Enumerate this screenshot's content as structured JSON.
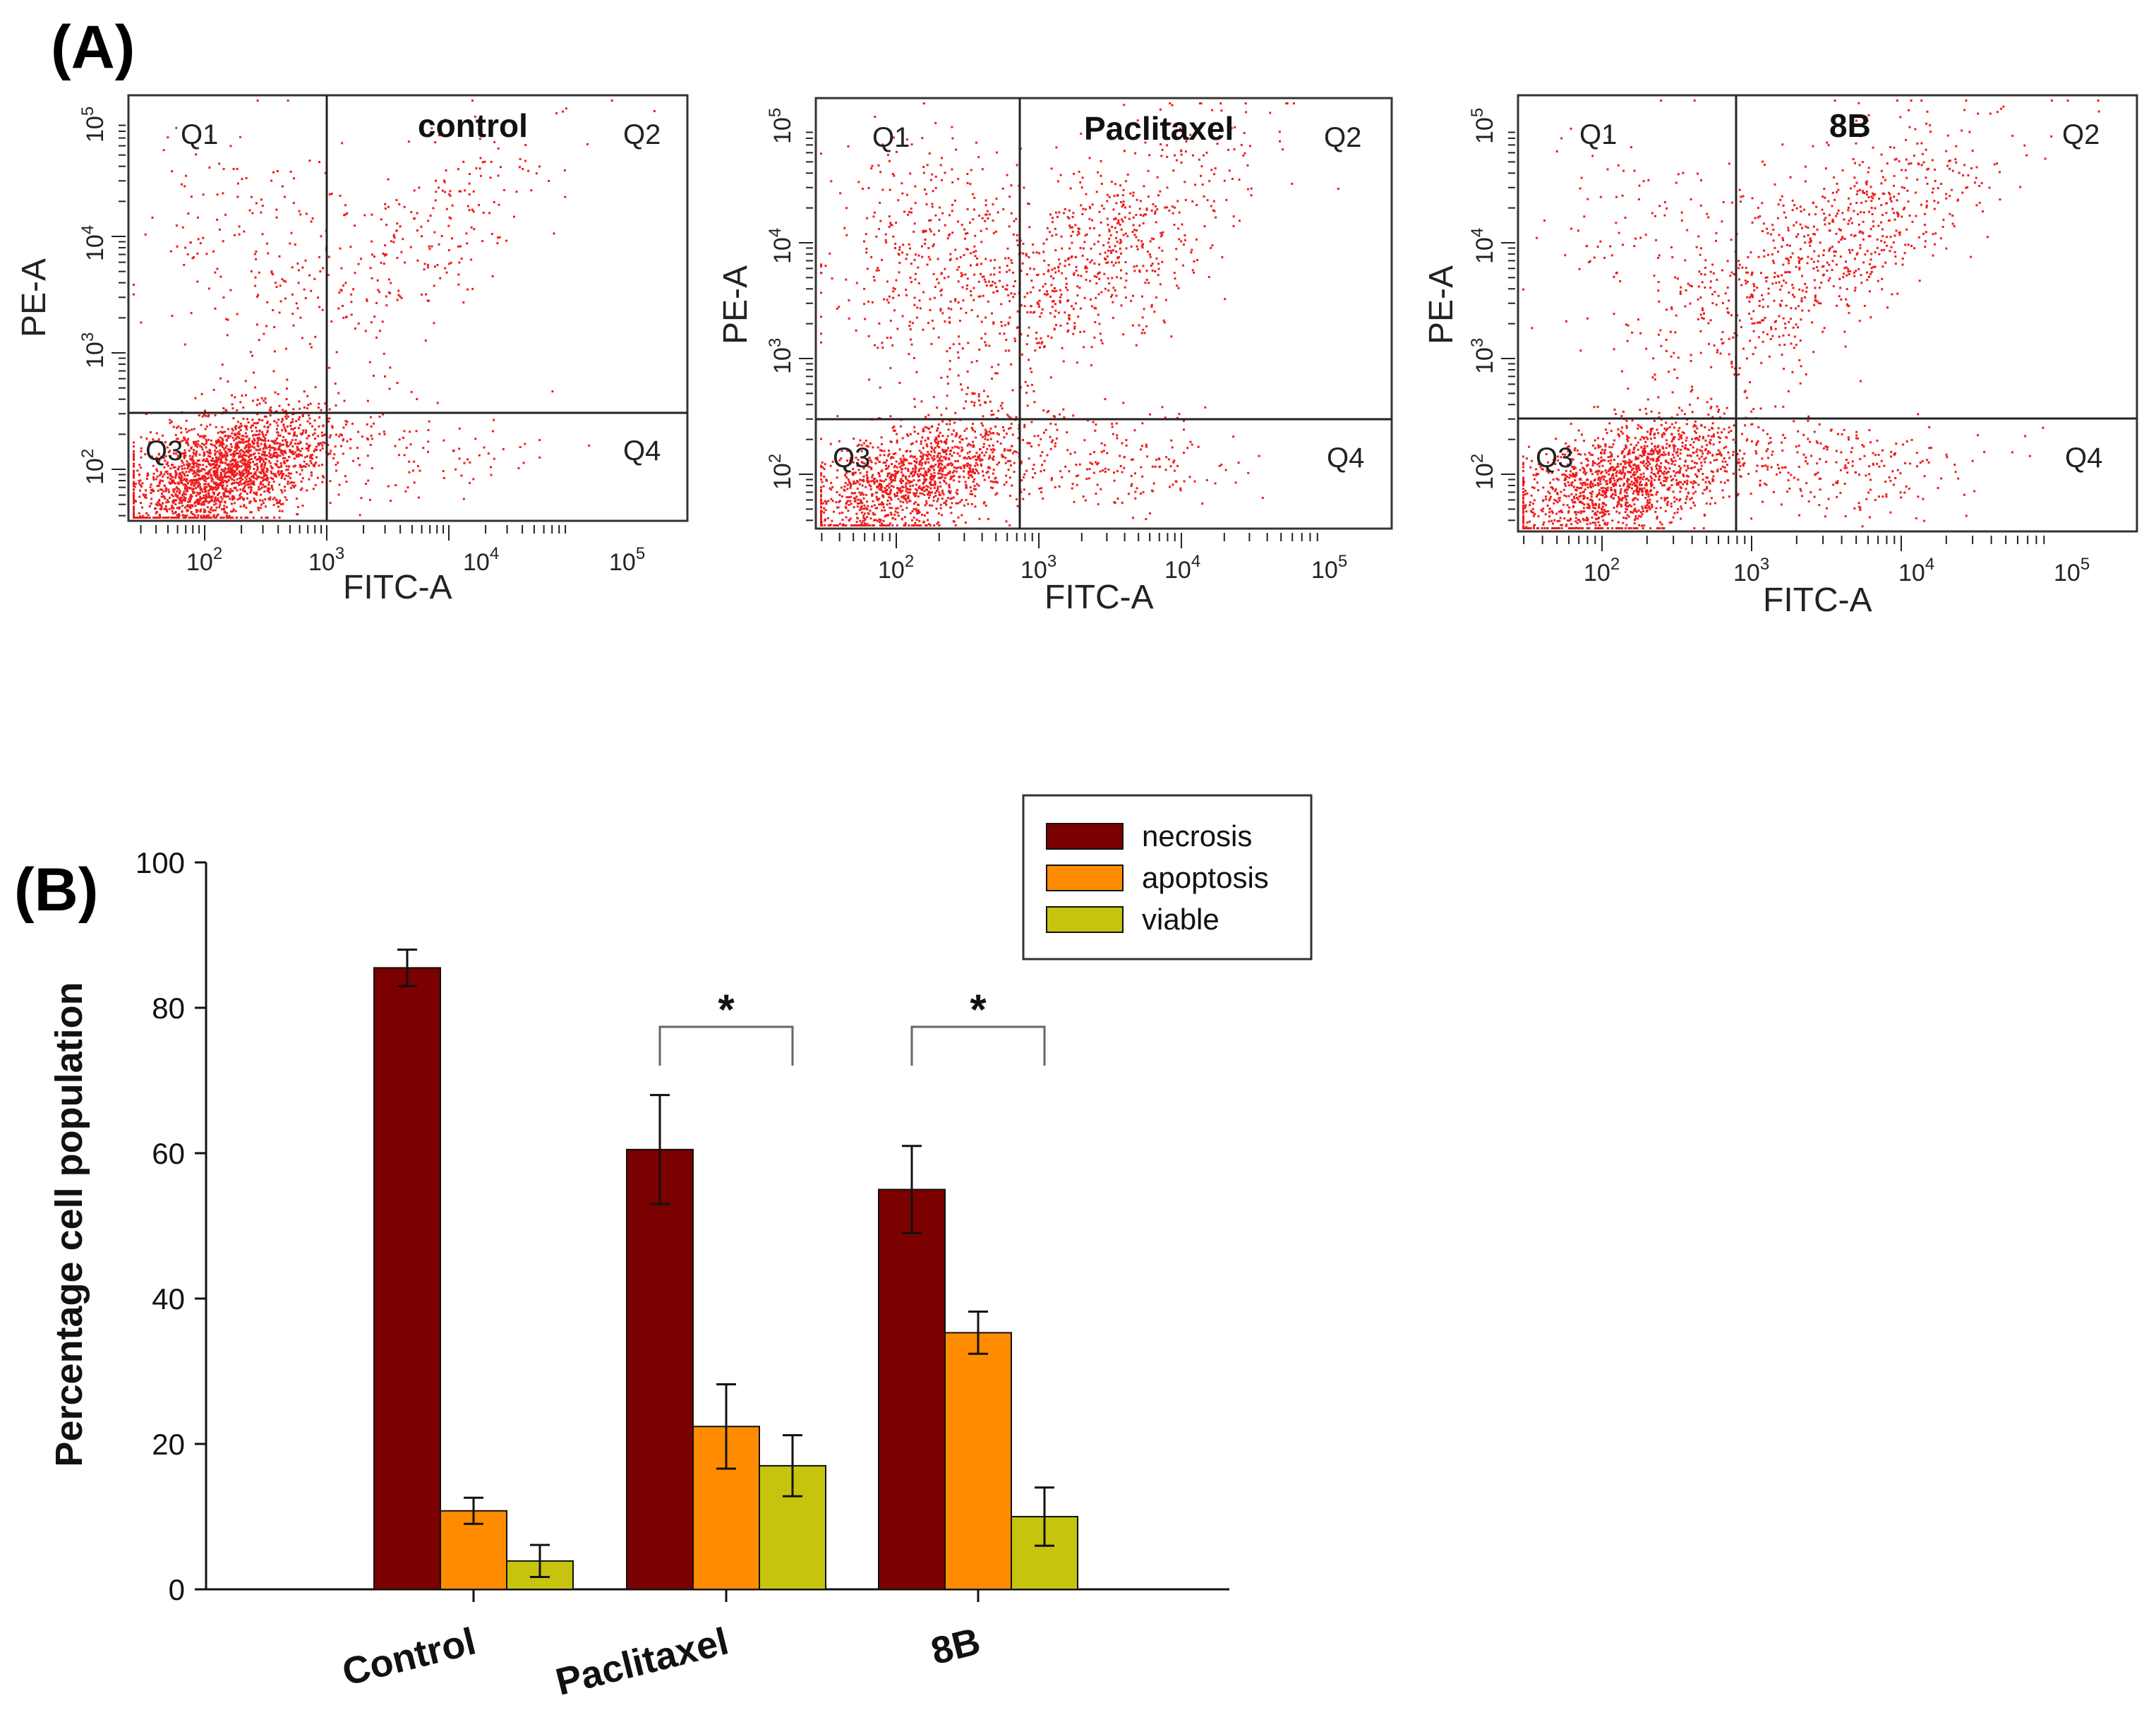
{
  "panel_a": {
    "label": "(A)",
    "x_axis_label": "FITC-A",
    "y_axis_label": "PE-A",
    "x_ticks": [
      {
        "base": "10",
        "exp": "2"
      },
      {
        "base": "10",
        "exp": "3"
      },
      {
        "base": "10",
        "exp": "4"
      },
      {
        "base": "10",
        "exp": "5"
      }
    ],
    "y_ticks": [
      {
        "base": "10",
        "exp": "2"
      },
      {
        "base": "10",
        "exp": "3"
      },
      {
        "base": "10",
        "exp": "4"
      },
      {
        "base": "10",
        "exp": "5"
      }
    ],
    "quadrant_labels": [
      "Q1",
      "Q2",
      "Q3",
      "Q4"
    ],
    "point_color": "#ee1c1c",
    "plots": [
      {
        "title": "control",
        "distribution": {
          "viable_pct": 80,
          "early_apoptotic_pct": 4,
          "late_apoptotic_pct": 10,
          "necrotic_pct": 6
        }
      },
      {
        "title": "Paclitaxel",
        "distribution": {
          "viable_pct": 50,
          "early_apoptotic_pct": 8,
          "late_apoptotic_pct": 26,
          "necrotic_pct": 16
        }
      },
      {
        "title": "8B",
        "distribution": {
          "viable_pct": 55,
          "early_apoptotic_pct": 10,
          "late_apoptotic_pct": 30,
          "necrotic_pct": 5
        }
      }
    ]
  },
  "panel_b": {
    "label": "(B)",
    "chart_data": {
      "type": "bar",
      "title": "",
      "xlabel": "",
      "ylabel": "Percentage cell population",
      "ylim": [
        0,
        100
      ],
      "yticks": [
        0,
        20,
        40,
        60,
        80,
        100
      ],
      "categories": [
        "Control",
        "Paclitaxel",
        "8B"
      ],
      "series": [
        {
          "name": "necrosis",
          "color": "#7b0000",
          "values": [
            85.5,
            60.5,
            55
          ],
          "errors": [
            2.5,
            7.5,
            6
          ]
        },
        {
          "name": "apoptosis",
          "color": "#ff8c00",
          "values": [
            10.8,
            22.4,
            35.3
          ],
          "errors": [
            1.8,
            5.8,
            2.9
          ]
        },
        {
          "name": "viable",
          "color": "#c6c40e",
          "values": [
            3.9,
            17,
            10
          ],
          "errors": [
            2.2,
            4.2,
            4
          ]
        }
      ],
      "legend_position": "top-right",
      "significance": [
        {
          "category": "Paclitaxel",
          "from": "necrosis",
          "to": "viable",
          "label": "*"
        },
        {
          "category": "8B",
          "from": "necrosis",
          "to": "viable",
          "label": "*"
        }
      ]
    }
  }
}
